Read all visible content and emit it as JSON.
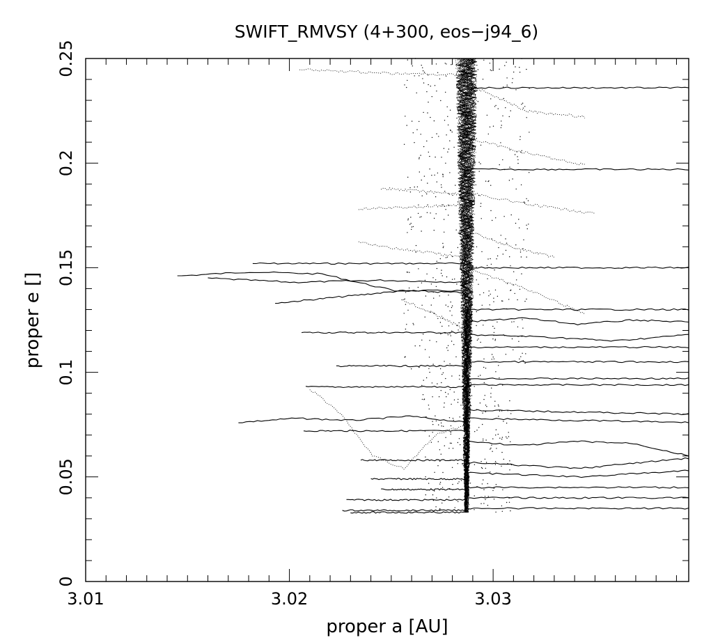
{
  "chart_data": {
    "type": "line",
    "title": "SWIFT_RMVSY (4+300, eos−j94_6)",
    "xlabel": "proper a [AU]",
    "ylabel": "proper e []",
    "xlim": [
      3.01,
      3.0396
    ],
    "ylim": [
      0,
      0.25
    ],
    "grid": false,
    "x_ticks": [
      {
        "value": 3.01,
        "label": "3.01"
      },
      {
        "value": 3.02,
        "label": "3.02"
      },
      {
        "value": 3.03,
        "label": "3.03"
      }
    ],
    "y_ticks": [
      {
        "value": 0,
        "label": "0"
      },
      {
        "value": 0.05,
        "label": "0.05"
      },
      {
        "value": 0.1,
        "label": "0.1"
      },
      {
        "value": 0.15,
        "label": "0.15"
      },
      {
        "value": 0.2,
        "label": "0.2"
      },
      {
        "value": 0.25,
        "label": "0.25"
      }
    ],
    "spine": {
      "x": 3.0287,
      "e_min": 0.033,
      "e_max": 0.25
    },
    "solid_tracks": [
      {
        "x": [
          3.0182,
          3.0287
        ],
        "e": [
          0.152
        ]
      },
      {
        "x": [
          3.0145,
          3.0287
        ],
        "e": [
          0.146,
          0.148,
          0.147,
          0.139,
          0.139
        ]
      },
      {
        "x": [
          3.016,
          3.0287
        ],
        "e": [
          0.145,
          0.143,
          0.144,
          0.143
        ]
      },
      {
        "x": [
          3.0193,
          3.0287
        ],
        "e": [
          0.133,
          0.136,
          0.139,
          0.138
        ]
      },
      {
        "x": [
          3.0206,
          3.0287
        ],
        "e": [
          0.119
        ]
      },
      {
        "x": [
          3.0223,
          3.0287
        ],
        "e": [
          0.103
        ]
      },
      {
        "x": [
          3.0208,
          3.0287
        ],
        "e": [
          0.093
        ]
      },
      {
        "x": [
          3.0175,
          3.0287
        ],
        "e": [
          0.076,
          0.078,
          0.077,
          0.079,
          0.076
        ]
      },
      {
        "x": [
          3.0207,
          3.0287
        ],
        "e": [
          0.072
        ]
      },
      {
        "x": [
          3.0235,
          3.0287
        ],
        "e": [
          0.058
        ]
      },
      {
        "x": [
          3.024,
          3.0287
        ],
        "e": [
          0.049
        ]
      },
      {
        "x": [
          3.0245,
          3.0287
        ],
        "e": [
          0.044
        ]
      },
      {
        "x": [
          3.0228,
          3.0287
        ],
        "e": [
          0.039
        ]
      },
      {
        "x": [
          3.0226,
          3.0287
        ],
        "e": [
          0.034
        ]
      },
      {
        "x": [
          3.023,
          3.0287
        ],
        "e": [
          0.033
        ]
      },
      {
        "x": [
          3.0287,
          3.0396
        ],
        "e": [
          0.236
        ]
      },
      {
        "x": [
          3.0287,
          3.0396
        ],
        "e": [
          0.197
        ]
      },
      {
        "x": [
          3.0287,
          3.0396
        ],
        "e": [
          0.15
        ]
      },
      {
        "x": [
          3.0287,
          3.0396
        ],
        "e": [
          0.13
        ]
      },
      {
        "x": [
          3.0287,
          3.0396
        ],
        "e": [
          0.124,
          0.126,
          0.123,
          0.125,
          0.124
        ]
      },
      {
        "x": [
          3.0287,
          3.0396
        ],
        "e": [
          0.118,
          0.117,
          0.115,
          0.118
        ]
      },
      {
        "x": [
          3.0287,
          3.0396
        ],
        "e": [
          0.112
        ]
      },
      {
        "x": [
          3.0287,
          3.0396
        ],
        "e": [
          0.105
        ]
      },
      {
        "x": [
          3.0287,
          3.0396
        ],
        "e": [
          0.097
        ]
      },
      {
        "x": [
          3.0287,
          3.0396
        ],
        "e": [
          0.094
        ]
      },
      {
        "x": [
          3.0287,
          3.0396
        ],
        "e": [
          0.082,
          0.081,
          0.08
        ]
      },
      {
        "x": [
          3.0287,
          3.0396
        ],
        "e": [
          0.078,
          0.077,
          0.076
        ]
      },
      {
        "x": [
          3.0287,
          3.0396
        ],
        "e": [
          0.067,
          0.065,
          0.067,
          0.066,
          0.06
        ]
      },
      {
        "x": [
          3.0287,
          3.0396
        ],
        "e": [
          0.057,
          0.054,
          0.059
        ]
      },
      {
        "x": [
          3.0287,
          3.0396
        ],
        "e": [
          0.052,
          0.05,
          0.053
        ]
      },
      {
        "x": [
          3.0287,
          3.0396
        ],
        "e": [
          0.045
        ]
      },
      {
        "x": [
          3.0287,
          3.0396
        ],
        "e": [
          0.04
        ]
      },
      {
        "x": [
          3.0287,
          3.0396
        ],
        "e": [
          0.035
        ]
      }
    ],
    "dotted_tracks": [
      {
        "x": [
          3.0205,
          3.0287
        ],
        "e": [
          0.245,
          0.243,
          0.242
        ]
      },
      {
        "x": [
          3.0287,
          3.0345
        ],
        "e": [
          0.238,
          0.225,
          0.222
        ]
      },
      {
        "x": [
          3.0287,
          3.0345
        ],
        "e": [
          0.212,
          0.205,
          0.199
        ]
      },
      {
        "x": [
          3.0245,
          3.0287
        ],
        "e": [
          0.188,
          0.185
        ]
      },
      {
        "x": [
          3.0234,
          3.0287
        ],
        "e": [
          0.178,
          0.18
        ]
      },
      {
        "x": [
          3.0287,
          3.035
        ],
        "e": [
          0.186,
          0.18,
          0.176
        ]
      },
      {
        "x": [
          3.0234,
          3.0287
        ],
        "e": [
          0.162,
          0.158,
          0.155
        ]
      },
      {
        "x": [
          3.0287,
          3.033
        ],
        "e": [
          0.168,
          0.16,
          0.155
        ]
      },
      {
        "x": [
          3.021,
          3.0287
        ],
        "e": [
          0.092,
          0.08,
          0.06,
          0.054,
          0.07,
          0.075
        ]
      },
      {
        "x": [
          3.0287,
          3.0345
        ],
        "e": [
          0.15,
          0.14,
          0.128
        ]
      },
      {
        "x": [
          3.0255,
          3.0287
        ],
        "e": [
          0.135,
          0.128,
          0.12
        ]
      }
    ]
  }
}
